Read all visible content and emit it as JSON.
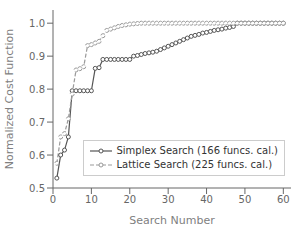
{
  "chart_data": {
    "type": "line",
    "xlabel": "Search Number",
    "ylabel": "Normalized Cost Function",
    "xlim": [
      0,
      62
    ],
    "ylim": [
      0.5,
      1.04
    ],
    "xticks": [
      0,
      10,
      20,
      30,
      40,
      50,
      60
    ],
    "yticks": [
      0.5,
      0.6,
      0.7,
      0.8,
      0.9,
      {
        "value": 1.0,
        "label": "1.0"
      }
    ],
    "grid": false,
    "legend": "lower right",
    "x": [
      1,
      2,
      3,
      4,
      5,
      6,
      7,
      8,
      9,
      10,
      11,
      12,
      13,
      14,
      15,
      16,
      17,
      18,
      19,
      20,
      21,
      22,
      23,
      24,
      25,
      26,
      27,
      28,
      29,
      30,
      31,
      32,
      33,
      34,
      35,
      36,
      37,
      38,
      39,
      40,
      41,
      42,
      43,
      44,
      45,
      46,
      47,
      48,
      49,
      50,
      51,
      52,
      53,
      54,
      55,
      56,
      57,
      58,
      59,
      60
    ],
    "series": [
      {
        "name": "Simplex Search (166 funcs. cal.)",
        "color": "#555555",
        "marker": "o",
        "line_style": "solid",
        "values": [
          0.53,
          0.6,
          0.615,
          0.655,
          0.795,
          0.795,
          0.795,
          0.795,
          0.795,
          0.795,
          0.863,
          0.865,
          0.89,
          0.89,
          0.89,
          0.89,
          0.89,
          0.89,
          0.89,
          0.89,
          0.9,
          0.902,
          0.905,
          0.908,
          0.91,
          0.912,
          0.915,
          0.92,
          0.925,
          0.93,
          0.935,
          0.94,
          0.945,
          0.95,
          0.955,
          0.96,
          0.963,
          0.966,
          0.97,
          0.972,
          0.975,
          0.978,
          0.98,
          0.982,
          0.985,
          0.987,
          0.99,
          1.0,
          1.0,
          1.0,
          1.0,
          1.0,
          1.0,
          1.0,
          1.0,
          1.0,
          1.0,
          1.0,
          1.0,
          1.0
        ]
      },
      {
        "name": "Lattice Search (225 funcs. cal.)",
        "color": "#999999",
        "marker": "o",
        "line_style": "dashed",
        "values": [
          0.575,
          0.655,
          0.665,
          0.71,
          0.785,
          0.858,
          0.862,
          0.868,
          0.932,
          0.935,
          0.94,
          0.945,
          0.962,
          0.978,
          0.982,
          0.986,
          0.99,
          0.993,
          0.995,
          0.997,
          0.998,
          0.999,
          1.0,
          1.0,
          1.0,
          1.0,
          1.0,
          1.0,
          1.0,
          1.0,
          1.0,
          1.0,
          1.0,
          1.0,
          1.0,
          1.0,
          1.0,
          1.0,
          1.0,
          1.0,
          1.0,
          1.0,
          1.0,
          1.0,
          1.0,
          1.0,
          1.0,
          1.0,
          1.0,
          1.0,
          1.0,
          1.0,
          1.0,
          1.0,
          1.0,
          1.0,
          1.0,
          1.0,
          1.0,
          1.0
        ]
      }
    ]
  }
}
